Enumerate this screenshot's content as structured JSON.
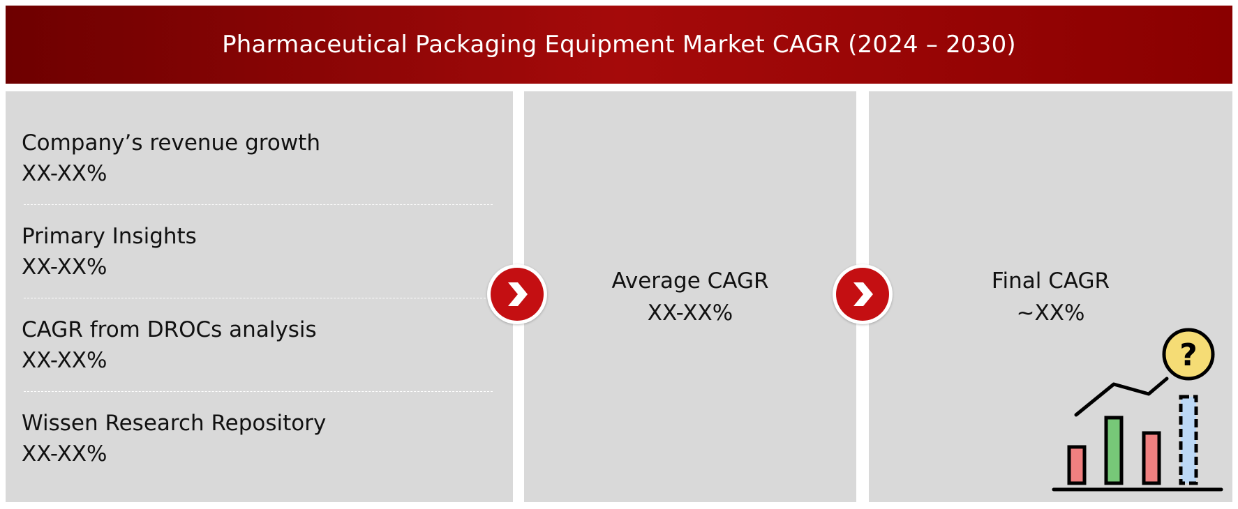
{
  "header": {
    "title": "Pharmaceutical Packaging Equipment Market CAGR (2024 – 2030)"
  },
  "sources": [
    {
      "label": "Company’s revenue growth",
      "value": "XX-XX%"
    },
    {
      "label": "Primary Insights",
      "value": "XX-XX%"
    },
    {
      "label": "CAGR from DROCs analysis",
      "value": "XX-XX%"
    },
    {
      "label": "Wissen Research Repository",
      "value": "XX-XX%"
    }
  ],
  "average": {
    "label": "Average CAGR",
    "value": "XX-XX%"
  },
  "final": {
    "label": "Final CAGR",
    "value": "~XX%"
  },
  "icons": {
    "arrow_1": "chevron-right-icon",
    "arrow_2": "chevron-right-icon",
    "chart": "growth-chart-question-icon"
  },
  "colors": {
    "header": "#9b0000",
    "panel": "#d9d9d9",
    "arrow": "#c40f12",
    "bar_red": "#f08080",
    "bar_green": "#77c878",
    "bar_blue": "#bcd8f5",
    "question_badge": "#f5dc75"
  }
}
